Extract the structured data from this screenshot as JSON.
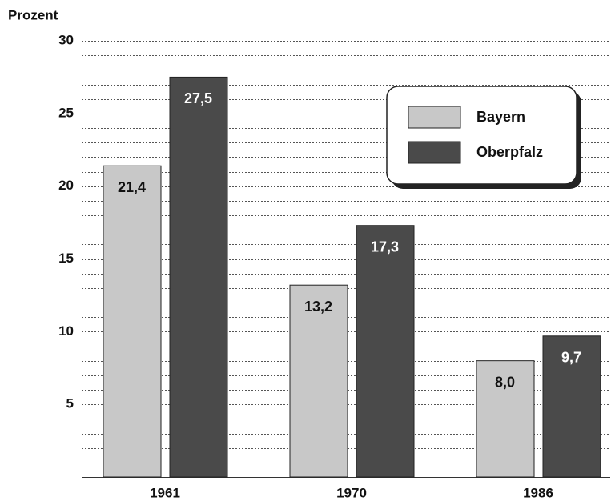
{
  "chart_data": {
    "type": "bar",
    "ylabel": "Prozent",
    "categories": [
      "1961",
      "1970",
      "1986"
    ],
    "series": [
      {
        "name": "Bayern",
        "color": "#c8c8c8",
        "values": [
          21.4,
          13.2,
          8.0
        ],
        "value_labels": [
          "21,4",
          "13,2",
          "8,0"
        ]
      },
      {
        "name": "Oberpfalz",
        "color": "#4a4a4a",
        "values": [
          27.5,
          17.3,
          9.7
        ],
        "value_labels": [
          "27,5",
          "17,3",
          "9,7"
        ]
      }
    ],
    "ylim": [
      0,
      30
    ],
    "yticks": [
      5,
      10,
      15,
      20,
      25,
      30
    ],
    "minor_yticks": [
      1,
      2,
      3,
      4,
      5,
      6,
      7,
      8,
      9,
      10,
      11,
      12,
      13,
      14,
      15,
      16,
      17,
      18,
      19,
      20,
      21,
      22,
      23,
      24,
      25,
      26,
      27,
      28,
      29,
      30
    ],
    "grid": true,
    "legend": "upper right"
  }
}
